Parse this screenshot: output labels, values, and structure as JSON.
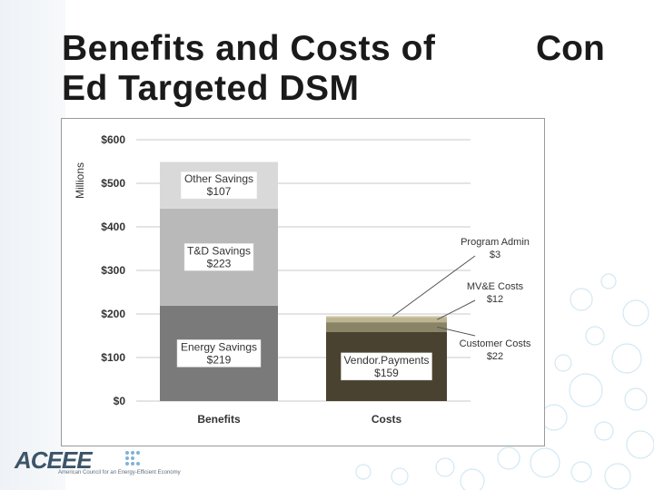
{
  "slide": {
    "title": "Benefits and Costs of\nEd Targeted DSM",
    "title_right": "Con",
    "logo_text": "ACEEE",
    "logo_subtitle": "American Council for an Energy-Efficient Economy"
  },
  "chart_data": {
    "type": "bar",
    "stacked": true,
    "title": "",
    "xlabel": "",
    "ylabel": "Millions",
    "ylim": [
      0,
      600
    ],
    "yticks": [
      0,
      100,
      200,
      300,
      400,
      500,
      600
    ],
    "ytick_labels": [
      "$0",
      "$100",
      "$200",
      "$300",
      "$400",
      "$500",
      "$600"
    ],
    "categories": [
      "Benefits",
      "Costs"
    ],
    "grid": true,
    "legend": "none",
    "series": [
      {
        "name": "Energy Savings",
        "category": "Benefits",
        "value": 219,
        "label": "$219",
        "color": "#7a7a7a"
      },
      {
        "name": "T&D Savings",
        "category": "Benefits",
        "value": 223,
        "label": "$223",
        "color": "#b9b9b9"
      },
      {
        "name": "Other Savings",
        "category": "Benefits",
        "value": 107,
        "label": "$107",
        "color": "#d9d9d9"
      },
      {
        "name": "Vendor Payments",
        "category": "Costs",
        "value": 159,
        "label": "$159",
        "color": "#4a4230"
      },
      {
        "name": "Customer Costs",
        "category": "Costs",
        "value": 22,
        "label": "$22",
        "color": "#8a8466"
      },
      {
        "name": "MV&E Costs",
        "category": "Costs",
        "value": 12,
        "label": "$12",
        "color": "#bdb592"
      },
      {
        "name": "Program Admin",
        "category": "Costs",
        "value": 3,
        "label": "$3",
        "color": "#e0dcc5"
      }
    ],
    "annotations": [
      {
        "name": "Program Admin",
        "label": "$3"
      },
      {
        "name": "MV&E Costs",
        "label": "$12"
      },
      {
        "name": "Customer Costs",
        "label": "$22"
      }
    ],
    "inside_labels": [
      {
        "name": "Other Savings",
        "label": "$107"
      },
      {
        "name": "T&D Savings",
        "label": "$223"
      },
      {
        "name": "Energy Savings",
        "label": "$219"
      },
      {
        "name": "Vendor.Payments",
        "label": "$159"
      }
    ]
  }
}
